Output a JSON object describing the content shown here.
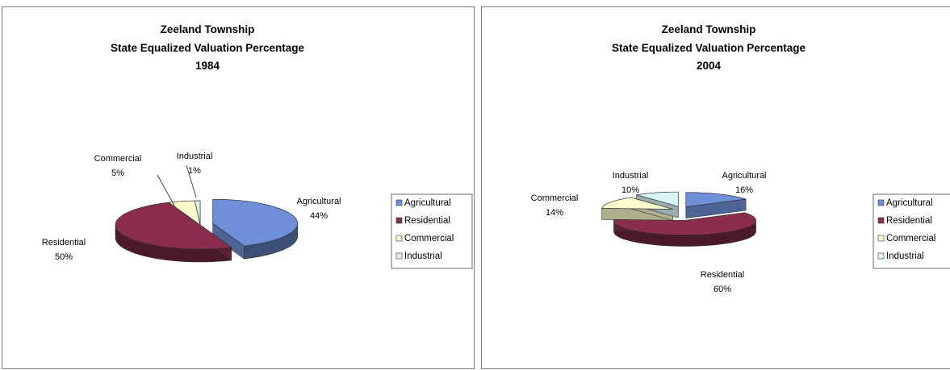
{
  "chart_data": [
    {
      "type": "pie",
      "title": [
        "Zeeland Township",
        "State Equalized Valuation Percentage",
        "1984"
      ],
      "categories": [
        "Agricultural",
        "Residential",
        "Commercial",
        "Industrial"
      ],
      "values": [
        44,
        50,
        5,
        1
      ],
      "labels": [
        {
          "name": "Agricultural",
          "pct": "44%"
        },
        {
          "name": "Residential",
          "pct": "50%"
        },
        {
          "name": "Commercial",
          "pct": "5%"
        },
        {
          "name": "Industrial",
          "pct": "1%"
        }
      ],
      "legend": [
        "Agricultural",
        "Residential",
        "Commercial",
        "Industrial"
      ],
      "legend_position": "right",
      "exploded": "Agricultural",
      "style": "3d-pie"
    },
    {
      "type": "pie",
      "title": [
        "Zeeland Township",
        "State Equalized Valuation Percentage",
        "2004"
      ],
      "categories": [
        "Agricultural",
        "Residential",
        "Commercial",
        "Industrial"
      ],
      "values": [
        16,
        60,
        14,
        10
      ],
      "labels": [
        {
          "name": "Agricultural",
          "pct": "16%"
        },
        {
          "name": "Residential",
          "pct": "60%"
        },
        {
          "name": "Commercial",
          "pct": "14%"
        },
        {
          "name": "Industrial",
          "pct": "10%"
        }
      ],
      "legend": [
        "Agricultural",
        "Residential",
        "Commercial",
        "Industrial"
      ],
      "legend_position": "right",
      "exploded": "all",
      "style": "3d-pie"
    }
  ],
  "colors": {
    "Agricultural": "#6f8fd8",
    "Residential": "#8a2d4f",
    "Commercial": "#fbfbcc",
    "Industrial": "#d8f5f5"
  }
}
